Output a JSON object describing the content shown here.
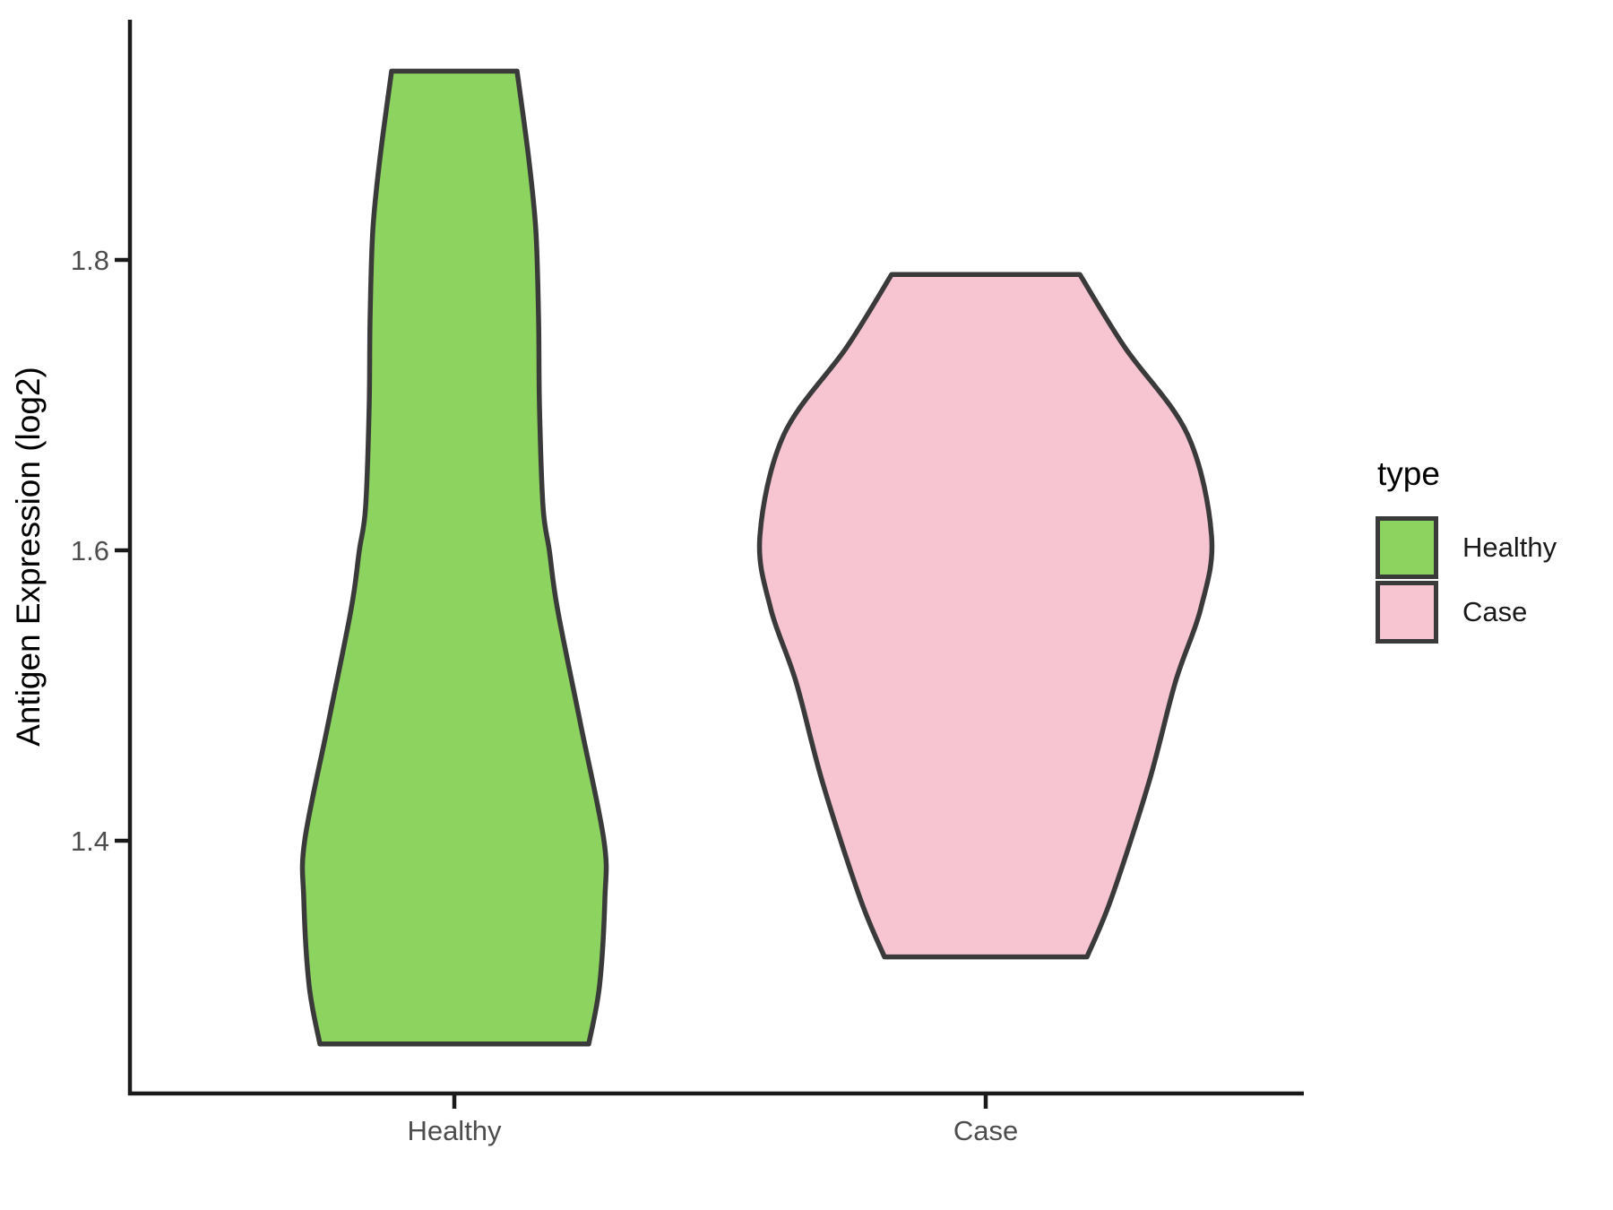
{
  "chart_data": {
    "type": "violin",
    "title": "",
    "xlabel": "",
    "ylabel": "Antigen Expression (log2)",
    "categories": [
      "Healthy",
      "Case"
    ],
    "y_ticks": [
      1.8,
      1.6,
      1.4
    ],
    "y_tick_labels": [
      "1.8",
      "1.6",
      "1.4"
    ],
    "ylim_shown": [
      1.23,
      1.97
    ],
    "grid": "off",
    "legend": {
      "title": "type",
      "position": "right",
      "entries": [
        {
          "label": "Healthy",
          "color": "#8dd35f"
        },
        {
          "label": "Case",
          "color": "#f7c5d1"
        }
      ]
    },
    "series": [
      {
        "name": "Healthy",
        "fill": "#8dd35f",
        "value_range": [
          1.26,
          1.93
        ],
        "profile": [
          {
            "value": 1.93,
            "halfwidth": 70
          },
          {
            "value": 1.87,
            "halfwidth": 83
          },
          {
            "value": 1.82,
            "halfwidth": 91
          },
          {
            "value": 1.76,
            "halfwidth": 94
          },
          {
            "value": 1.7,
            "halfwidth": 95
          },
          {
            "value": 1.63,
            "halfwidth": 99
          },
          {
            "value": 1.6,
            "halfwidth": 106
          },
          {
            "value": 1.56,
            "halfwidth": 115
          },
          {
            "value": 1.48,
            "halfwidth": 141
          },
          {
            "value": 1.4,
            "halfwidth": 167
          },
          {
            "value": 1.36,
            "halfwidth": 168
          },
          {
            "value": 1.3,
            "halfwidth": 162
          },
          {
            "value": 1.26,
            "halfwidth": 150
          }
        ]
      },
      {
        "name": "Case",
        "fill": "#f7c5d1",
        "value_range": [
          1.32,
          1.79
        ],
        "profile": [
          {
            "value": 1.79,
            "halfwidth": 105
          },
          {
            "value": 1.74,
            "halfwidth": 155
          },
          {
            "value": 1.68,
            "halfwidth": 225
          },
          {
            "value": 1.61,
            "halfwidth": 252
          },
          {
            "value": 1.56,
            "halfwidth": 240
          },
          {
            "value": 1.51,
            "halfwidth": 212
          },
          {
            "value": 1.44,
            "halfwidth": 182
          },
          {
            "value": 1.36,
            "halfwidth": 140
          },
          {
            "value": 1.32,
            "halfwidth": 113
          }
        ]
      }
    ],
    "style": {
      "outline_color": "#3a3a3a",
      "axis_color": "#1a1a1a",
      "tick_label_color": "#4d4d4d",
      "title_color": "#000000"
    }
  }
}
